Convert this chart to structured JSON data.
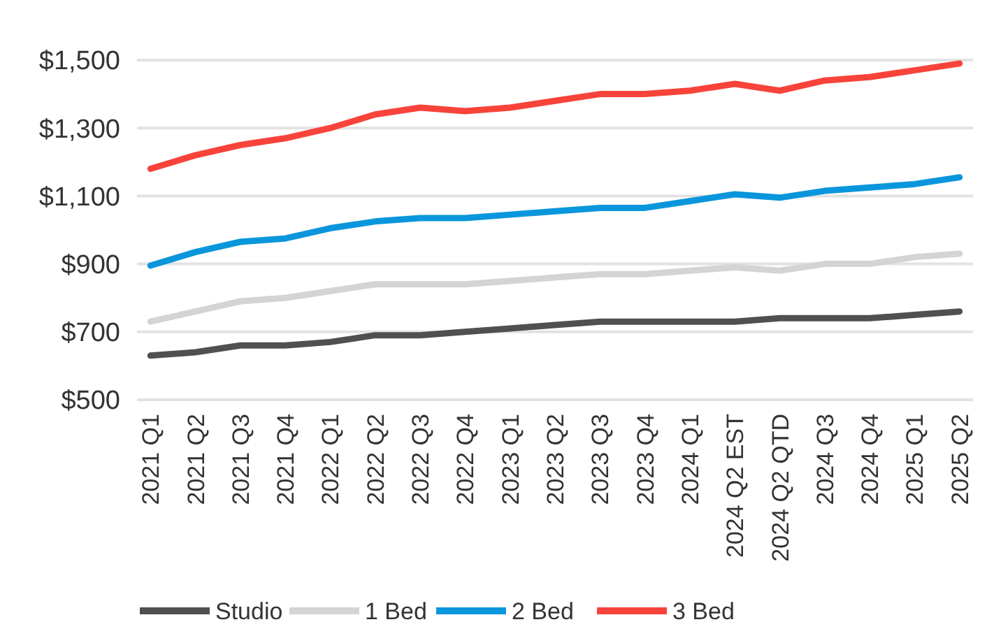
{
  "chart_data": {
    "type": "line",
    "categories": [
      "2021 Q1",
      "2021 Q2",
      "2021 Q3",
      "2021 Q4",
      "2022 Q1",
      "2022 Q2",
      "2022 Q3",
      "2022 Q4",
      "2023 Q1",
      "2023 Q2",
      "2023 Q3",
      "2023 Q4",
      "2024 Q1",
      "2024 Q2 EST",
      "2024 Q2 QTD",
      "2024 Q3",
      "2024 Q4",
      "2025 Q1",
      "2025 Q2"
    ],
    "series": [
      {
        "name": "Studio",
        "color": "#505050",
        "values": [
          630,
          640,
          660,
          660,
          670,
          690,
          690,
          700,
          710,
          720,
          730,
          730,
          730,
          730,
          740,
          740,
          740,
          750,
          760
        ]
      },
      {
        "name": "1 Bed",
        "color": "#d4d4d4",
        "values": [
          730,
          760,
          790,
          800,
          820,
          840,
          840,
          840,
          850,
          860,
          870,
          870,
          880,
          890,
          880,
          900,
          900,
          920,
          930
        ]
      },
      {
        "name": "2 Bed",
        "color": "#0a96dc",
        "values": [
          895,
          935,
          965,
          975,
          1005,
          1025,
          1035,
          1035,
          1045,
          1055,
          1065,
          1065,
          1085,
          1105,
          1095,
          1115,
          1125,
          1135,
          1155
        ]
      },
      {
        "name": "3 Bed",
        "color": "#f8433a",
        "values": [
          1180,
          1220,
          1250,
          1270,
          1300,
          1340,
          1360,
          1350,
          1360,
          1380,
          1400,
          1400,
          1410,
          1430,
          1410,
          1440,
          1450,
          1470,
          1490
        ]
      }
    ],
    "ylim": [
      500,
      1500
    ],
    "yticks": [
      {
        "value": 500,
        "label": "$500"
      },
      {
        "value": 700,
        "label": "$700"
      },
      {
        "value": 900,
        "label": "$900"
      },
      {
        "value": 1100,
        "label": "$1,100"
      },
      {
        "value": 1300,
        "label": "$1,300"
      },
      {
        "value": 1500,
        "label": "$1,500"
      }
    ],
    "grid": "y",
    "legend": "bottom",
    "line_style": "solid"
  }
}
